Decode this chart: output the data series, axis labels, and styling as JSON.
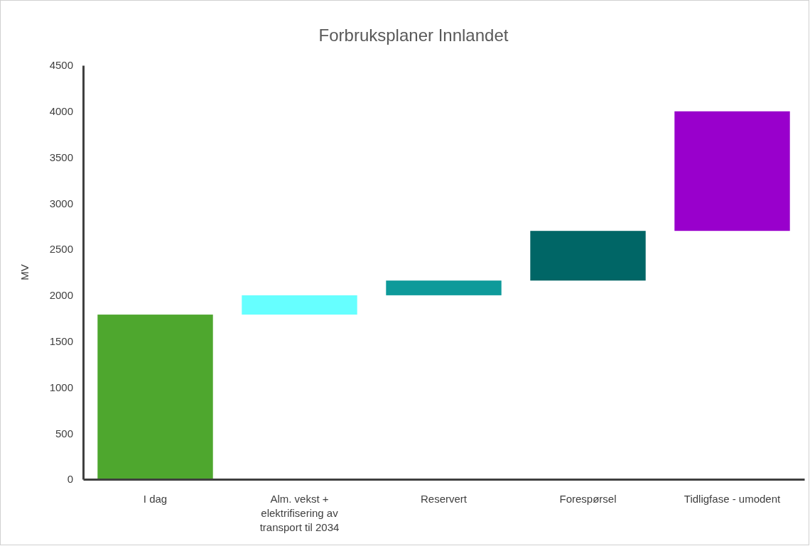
{
  "chart_data": {
    "type": "bar",
    "title": "Forbruksplaner Innlandet",
    "ylabel": "MV",
    "categories": [
      "I dag",
      "Alm. vekst + elektrifisering av transport til 2034",
      "Reservert",
      "Forespørsel",
      "Tidligfase - umodent"
    ],
    "values": [
      1790,
      210,
      160,
      540,
      1300
    ],
    "base": [
      0,
      1790,
      2000,
      2160,
      2700
    ],
    "colors": [
      "#4ea72e",
      "#66ffff",
      "#0e9a9a",
      "#006666",
      "#9900cc"
    ],
    "ylim": [
      0,
      4500
    ],
    "yticks": [
      0,
      500,
      1000,
      1500,
      2000,
      2500,
      3000,
      3500,
      4000,
      4500
    ],
    "grid": false
  }
}
